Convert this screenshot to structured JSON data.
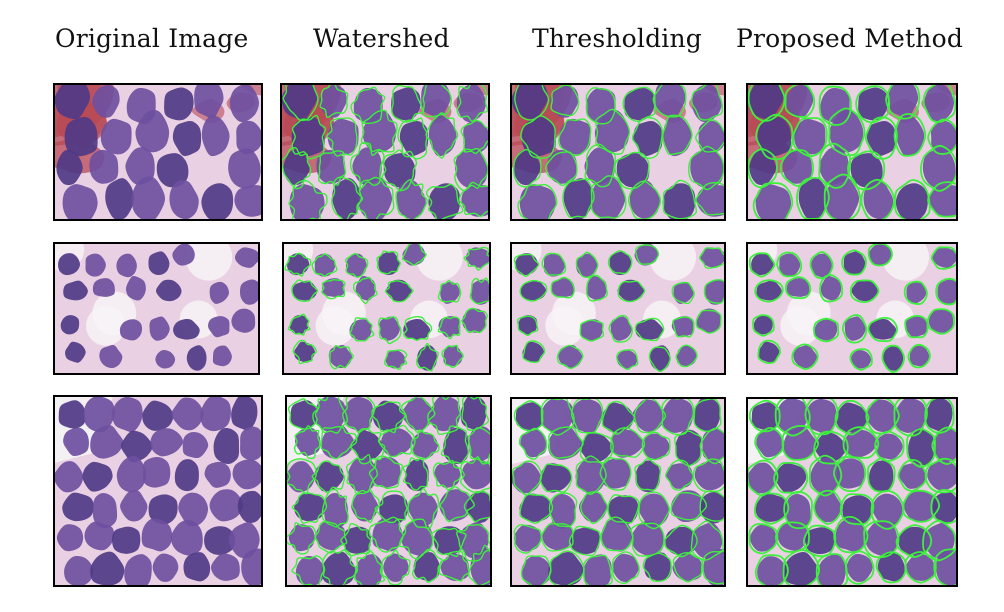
{
  "columns": {
    "original": "Original Image",
    "watershed": "Watershed",
    "thresholding": "Thresholding",
    "proposed": "Proposed Method"
  },
  "colors": {
    "background_tissue": "#ead0e3",
    "nucleus": "#6e4f9f",
    "nucleus_dark": "#4f3a86",
    "blood": "#b84a55",
    "contour": "#3cf03c",
    "border": "#000000"
  },
  "rows": [
    {
      "sample": "row-1"
    },
    {
      "sample": "row-2"
    },
    {
      "sample": "row-3"
    }
  ]
}
